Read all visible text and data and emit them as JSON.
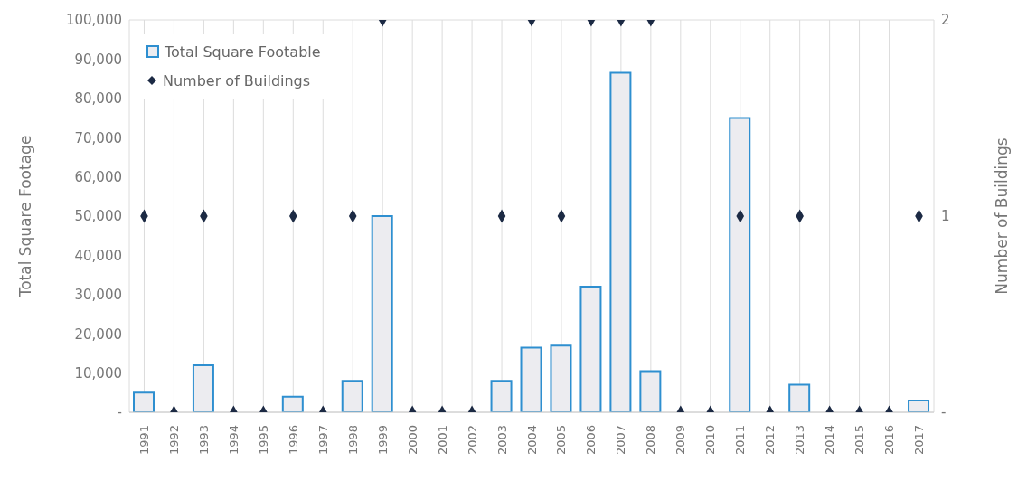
{
  "chart_data": {
    "type": "bar",
    "ylabel": "Total Square Footage",
    "y2label": "Number of Buildings",
    "categories": [
      "1991",
      "1992",
      "1993",
      "1994",
      "1995",
      "1996",
      "1997",
      "1998",
      "1999",
      "2000",
      "2001",
      "2002",
      "2003",
      "2004",
      "2005",
      "2006",
      "2007",
      "2008",
      "2009",
      "2010",
      "2011",
      "2012",
      "2013",
      "2014",
      "2015",
      "2016",
      "2017"
    ],
    "series": [
      {
        "name": "Total Square Footable",
        "color": "#2e8fd0",
        "values": [
          5000,
          0,
          12000,
          0,
          0,
          4000,
          0,
          8000,
          50000,
          0,
          0,
          0,
          8000,
          16500,
          17000,
          32000,
          86500,
          10500,
          0,
          0,
          75000,
          0,
          7000,
          0,
          0,
          0,
          3000
        ]
      },
      {
        "name": "Number of Buildings",
        "type": "scatter",
        "axis": "y2",
        "color": "#1c2a44",
        "values": [
          1,
          0,
          1,
          0,
          0,
          1,
          0,
          1,
          2,
          0,
          0,
          0,
          1,
          2,
          1,
          2,
          2,
          2,
          0,
          0,
          1,
          0,
          1,
          0,
          0,
          0,
          1
        ]
      }
    ],
    "ylim": [
      0,
      100000
    ],
    "yticks": [
      {
        "value": 0,
        "label": "-"
      },
      {
        "value": 10000,
        "label": "10,000"
      },
      {
        "value": 20000,
        "label": "20,000"
      },
      {
        "value": 30000,
        "label": "30,000"
      },
      {
        "value": 40000,
        "label": "40,000"
      },
      {
        "value": 50000,
        "label": "50,000"
      },
      {
        "value": 60000,
        "label": "60,000"
      },
      {
        "value": 70000,
        "label": "70,000"
      },
      {
        "value": 80000,
        "label": "80,000"
      },
      {
        "value": 90000,
        "label": "90,000"
      },
      {
        "value": 100000,
        "label": "100,000"
      }
    ],
    "y2lim": [
      0,
      2
    ],
    "y2ticks": [
      {
        "value": 0,
        "label": "-"
      },
      1,
      2
    ],
    "grid": true,
    "legend": "top left",
    "marker": "diamond"
  }
}
